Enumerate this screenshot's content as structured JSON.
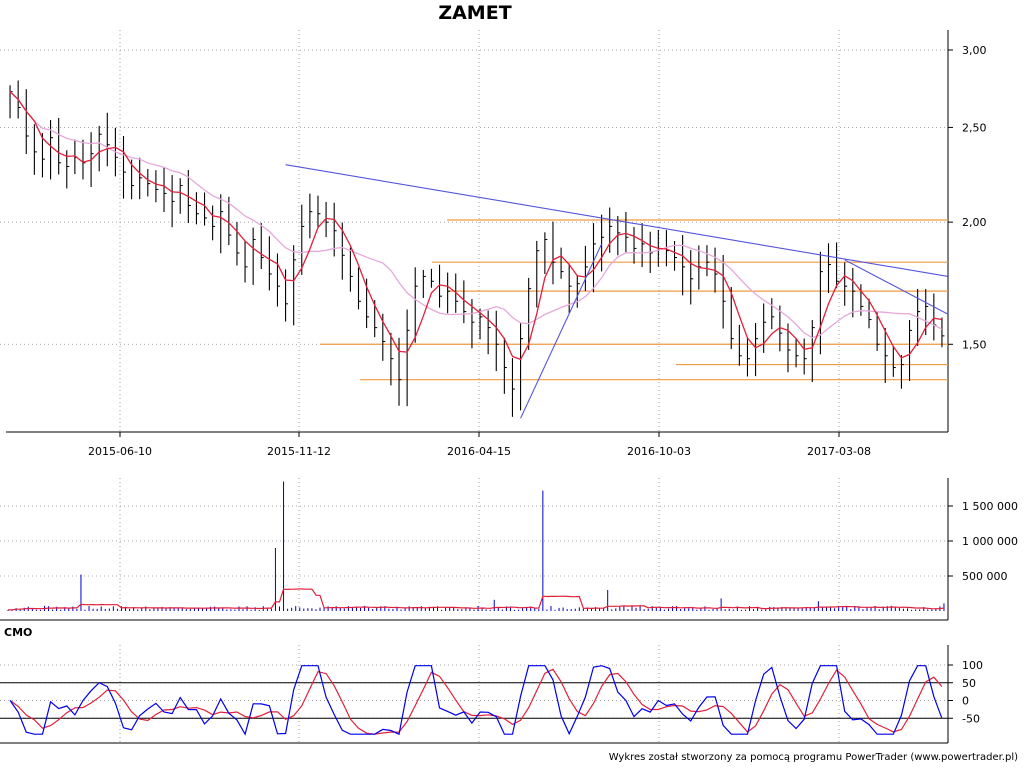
{
  "chart_data": [
    {
      "type": "candlestick",
      "title": "ZAMET",
      "x_ticks": [
        "2015-06-10",
        "2015-11-12",
        "2016-04-15",
        "2016-10-03",
        "2017-03-08"
      ],
      "y_scale": "log",
      "y_ticks": [
        "3,00",
        "2,50",
        "2,00",
        "1,50"
      ],
      "ylim": [
        1.22,
        3.0
      ],
      "grid": true,
      "series": [
        {
          "kind": "close",
          "color": "#000000",
          "values": [
            2.72,
            2.62,
            2.45,
            2.36,
            2.32,
            2.44,
            2.3,
            2.28,
            2.33,
            2.3,
            2.35,
            2.46,
            2.4,
            2.33,
            2.25,
            2.18,
            2.22,
            2.19,
            2.16,
            2.14,
            2.1,
            2.18,
            2.08,
            2.04,
            2.02,
            1.98,
            2.05,
            1.94,
            1.86,
            1.8,
            1.92,
            1.84,
            1.77,
            1.72,
            1.65,
            1.83,
            1.98,
            2.05,
            2.04,
            2.0,
            1.96,
            1.85,
            1.76,
            1.66,
            1.6,
            1.56,
            1.51,
            1.45,
            1.38,
            1.55,
            1.72,
            1.76,
            1.74,
            1.68,
            1.7,
            1.66,
            1.62,
            1.58,
            1.6,
            1.56,
            1.5,
            1.42,
            1.35,
            1.52,
            1.71,
            1.87,
            1.92,
            1.82,
            1.78,
            1.72,
            1.73,
            1.8,
            1.9,
            1.93,
            1.98,
            1.95,
            1.93,
            1.88,
            1.9,
            1.86,
            1.88,
            1.87,
            1.84,
            1.8,
            1.75,
            1.8,
            1.82,
            1.77,
            1.66,
            1.52,
            1.46,
            1.45,
            1.52,
            1.58,
            1.6,
            1.54,
            1.48,
            1.46,
            1.45,
            1.56,
            1.78,
            1.81,
            1.74,
            1.72,
            1.7,
            1.64,
            1.59,
            1.5,
            1.46,
            1.42,
            1.43,
            1.55,
            1.62,
            1.64,
            1.57,
            1.53
          ]
        },
        {
          "kind": "moving-average-short",
          "color": "#e0203a"
        },
        {
          "kind": "moving-average-long",
          "color": "#e6a8dc"
        }
      ],
      "trendlines_color": "#5555dd",
      "horizontal_levels": {
        "color": "#f09a40",
        "values": [
          2.01,
          1.82,
          1.7,
          1.5,
          1.43,
          1.38
        ]
      }
    },
    {
      "type": "bar",
      "label": "volume",
      "y_ticks": [
        "1 500 000",
        "1 000 000",
        "500 000"
      ],
      "ylim": [
        0,
        1900000
      ],
      "grid": true,
      "bar_color": "#0000cc",
      "average_color": "#e0203a",
      "spikes": [
        {
          "date_index": 34,
          "value": 1850000
        },
        {
          "date_index": 33,
          "value": 900000
        },
        {
          "date_index": 66,
          "value": 1720000
        },
        {
          "date_index": 9,
          "value": 520000
        },
        {
          "date_index": 60,
          "value": 160000
        },
        {
          "date_index": 74,
          "value": 300000
        },
        {
          "date_index": 88,
          "value": 180000
        },
        {
          "date_index": 100,
          "value": 140000
        },
        {
          "date_index": 116,
          "value": 110000
        }
      ]
    },
    {
      "type": "line",
      "label": "CMO",
      "y_ticks": [
        "100",
        "50",
        "0",
        "-50"
      ],
      "ylim": [
        -100,
        100
      ],
      "reference_lines": [
        50,
        -50
      ],
      "grid": true,
      "series": [
        {
          "kind": "cmo",
          "color": "#0000ee"
        },
        {
          "kind": "signal",
          "color": "#e0203a"
        }
      ]
    }
  ],
  "footer": {
    "credit": "Wykres został stworzony za pomocą programu PowerTrader (www.powertrader.pl)"
  }
}
